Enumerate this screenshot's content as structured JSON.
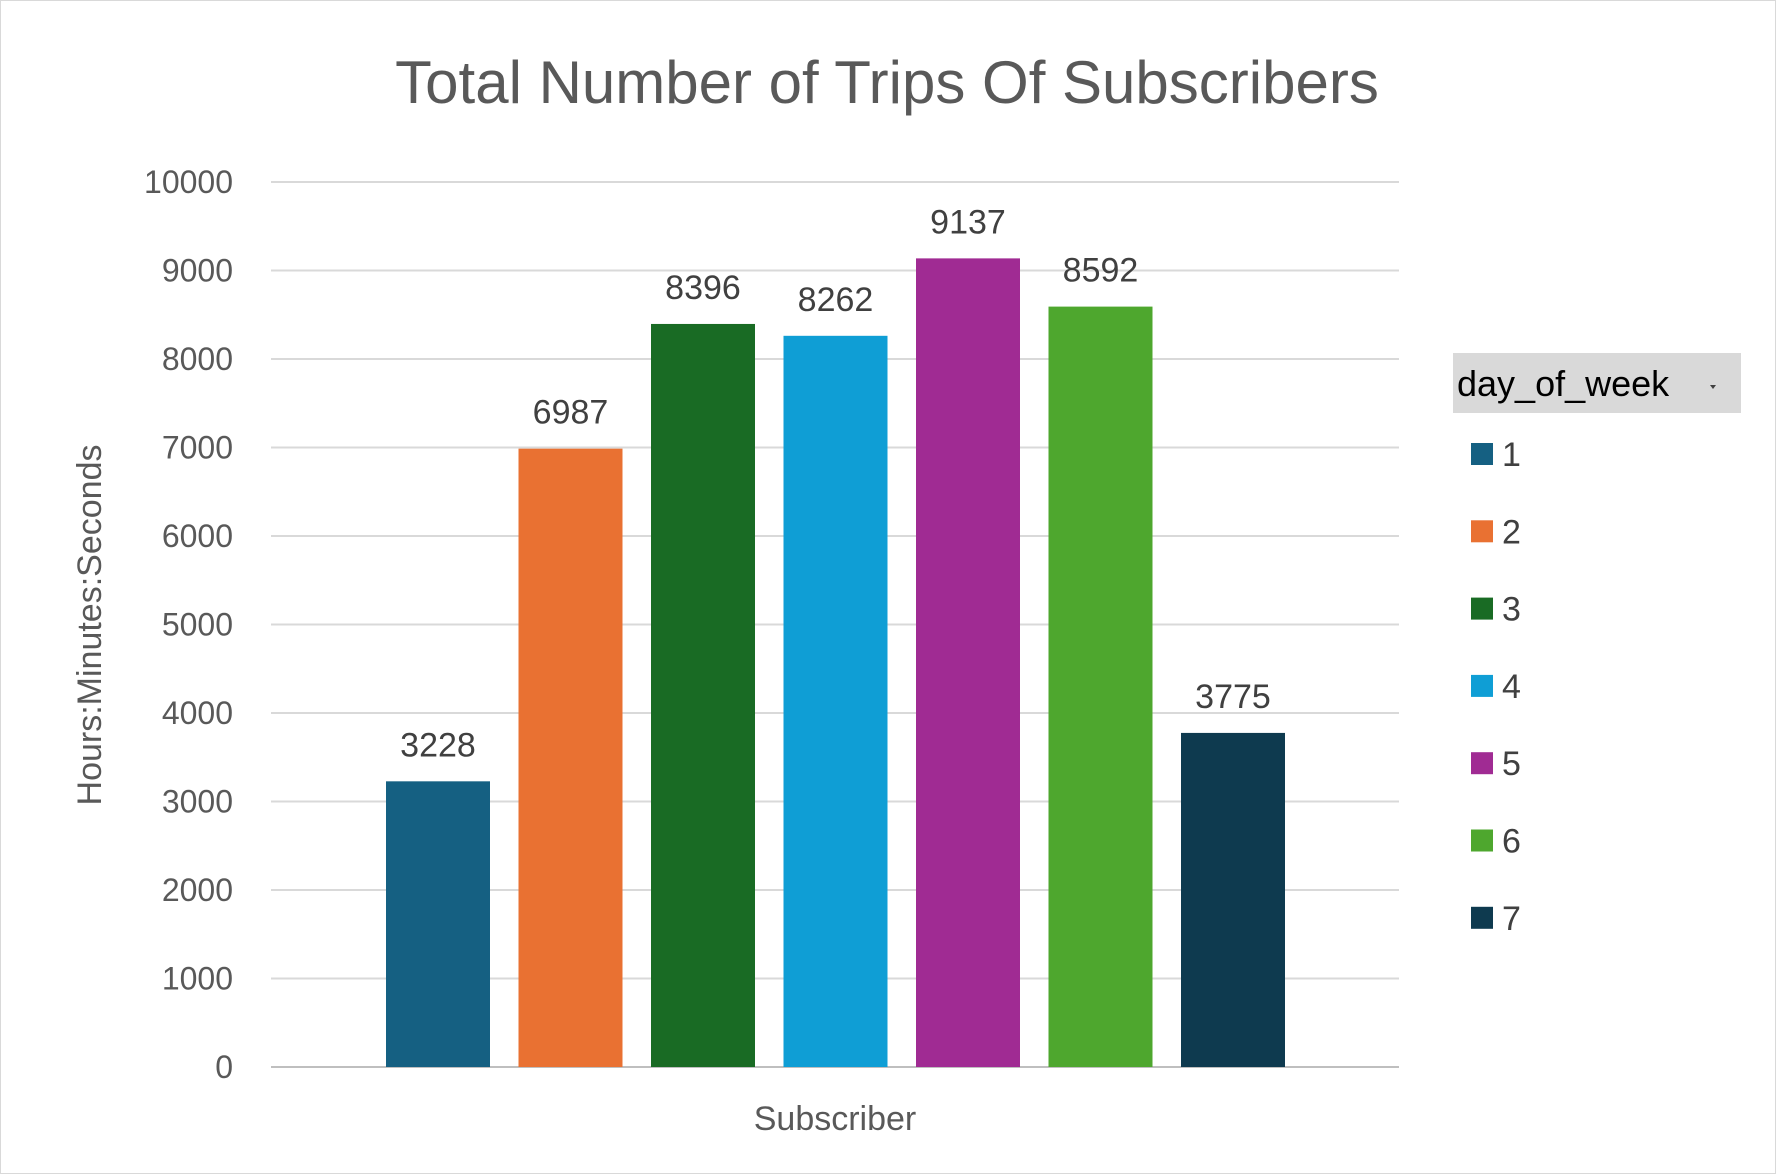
{
  "chart_data": {
    "type": "bar",
    "title": "Total Number of Trips Of Subscribers",
    "xlabel": "Subscriber",
    "ylabel": "Hours:Minutes:Seconds",
    "ylim": [
      0,
      10000
    ],
    "yticks": [
      0,
      1000,
      2000,
      3000,
      4000,
      5000,
      6000,
      7000,
      8000,
      9000,
      10000
    ],
    "grid": true,
    "legend_position": "right",
    "legend_title": "day_of_week",
    "categories": [
      "Subscriber"
    ],
    "series": [
      {
        "name": "1",
        "values": [
          3228
        ],
        "color": "#156082"
      },
      {
        "name": "2",
        "values": [
          6987
        ],
        "color": "#E97132"
      },
      {
        "name": "3",
        "values": [
          8396
        ],
        "color": "#196B24"
      },
      {
        "name": "4",
        "values": [
          8262
        ],
        "color": "#0F9ED5"
      },
      {
        "name": "5",
        "values": [
          9137
        ],
        "color": "#A02B93"
      },
      {
        "name": "6",
        "values": [
          8592
        ],
        "color": "#4EA72E"
      },
      {
        "name": "7",
        "values": [
          3775
        ],
        "color": "#0E3A4F"
      }
    ]
  }
}
